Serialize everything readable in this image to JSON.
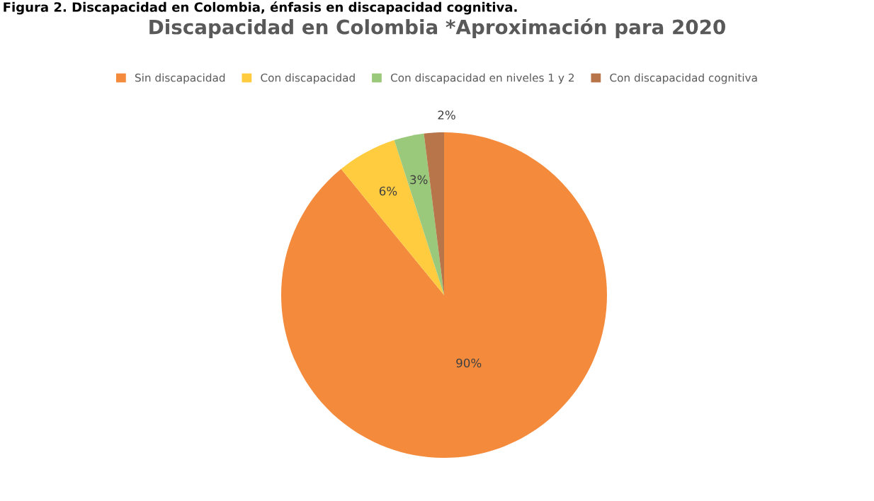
{
  "chart_data": {
    "type": "pie",
    "title": "Discapacidad en Colombia *Aproximación para 2020",
    "annotations": [
      "Figura 2. Discapacidad en Colombia, énfasis en discapacidad cognitiva."
    ],
    "categories": [
      "Sin discapacidad",
      "Con discapacidad",
      "Con discapacidad en niveles 1 y 2",
      "Con discapacidad cognitiva"
    ],
    "values": [
      90,
      6,
      3,
      2
    ],
    "value_labels": [
      "90%",
      "6%",
      "3%",
      "2%"
    ],
    "colors": [
      "#f48a3c",
      "#ffcc40",
      "#9bc97b",
      "#b8754a"
    ],
    "legend": "top"
  }
}
